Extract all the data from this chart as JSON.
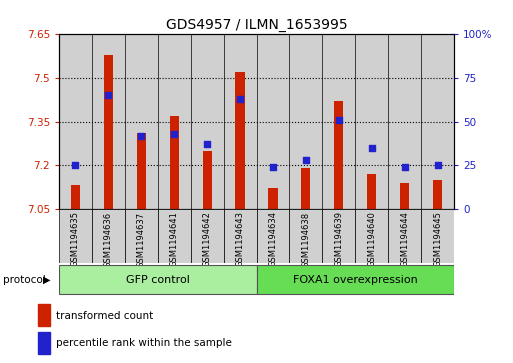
{
  "title": "GDS4957 / ILMN_1653995",
  "samples": [
    "GSM1194635",
    "GSM1194636",
    "GSM1194637",
    "GSM1194641",
    "GSM1194642",
    "GSM1194643",
    "GSM1194634",
    "GSM1194638",
    "GSM1194639",
    "GSM1194640",
    "GSM1194644",
    "GSM1194645"
  ],
  "transformed_count": [
    7.13,
    7.58,
    7.31,
    7.37,
    7.25,
    7.52,
    7.12,
    7.19,
    7.42,
    7.17,
    7.14,
    7.15
  ],
  "percentile_rank": [
    25,
    65,
    42,
    43,
    37,
    63,
    24,
    28,
    51,
    35,
    24,
    25
  ],
  "ymin": 7.05,
  "ymax": 7.65,
  "yticks": [
    7.05,
    7.2,
    7.35,
    7.5,
    7.65
  ],
  "y2ticks": [
    0,
    25,
    50,
    75,
    100
  ],
  "group1_label": "GFP control",
  "group2_label": "FOXA1 overexpression",
  "group1_count": 6,
  "group2_count": 6,
  "bar_color": "#cc2200",
  "dot_color": "#2222cc",
  "group_color1": "#aaeea0",
  "group_color2": "#66dd55",
  "bg_color": "#d0d0d0",
  "legend_bar": "transformed count",
  "legend_dot": "percentile rank within the sample",
  "protocol_label": "protocol"
}
